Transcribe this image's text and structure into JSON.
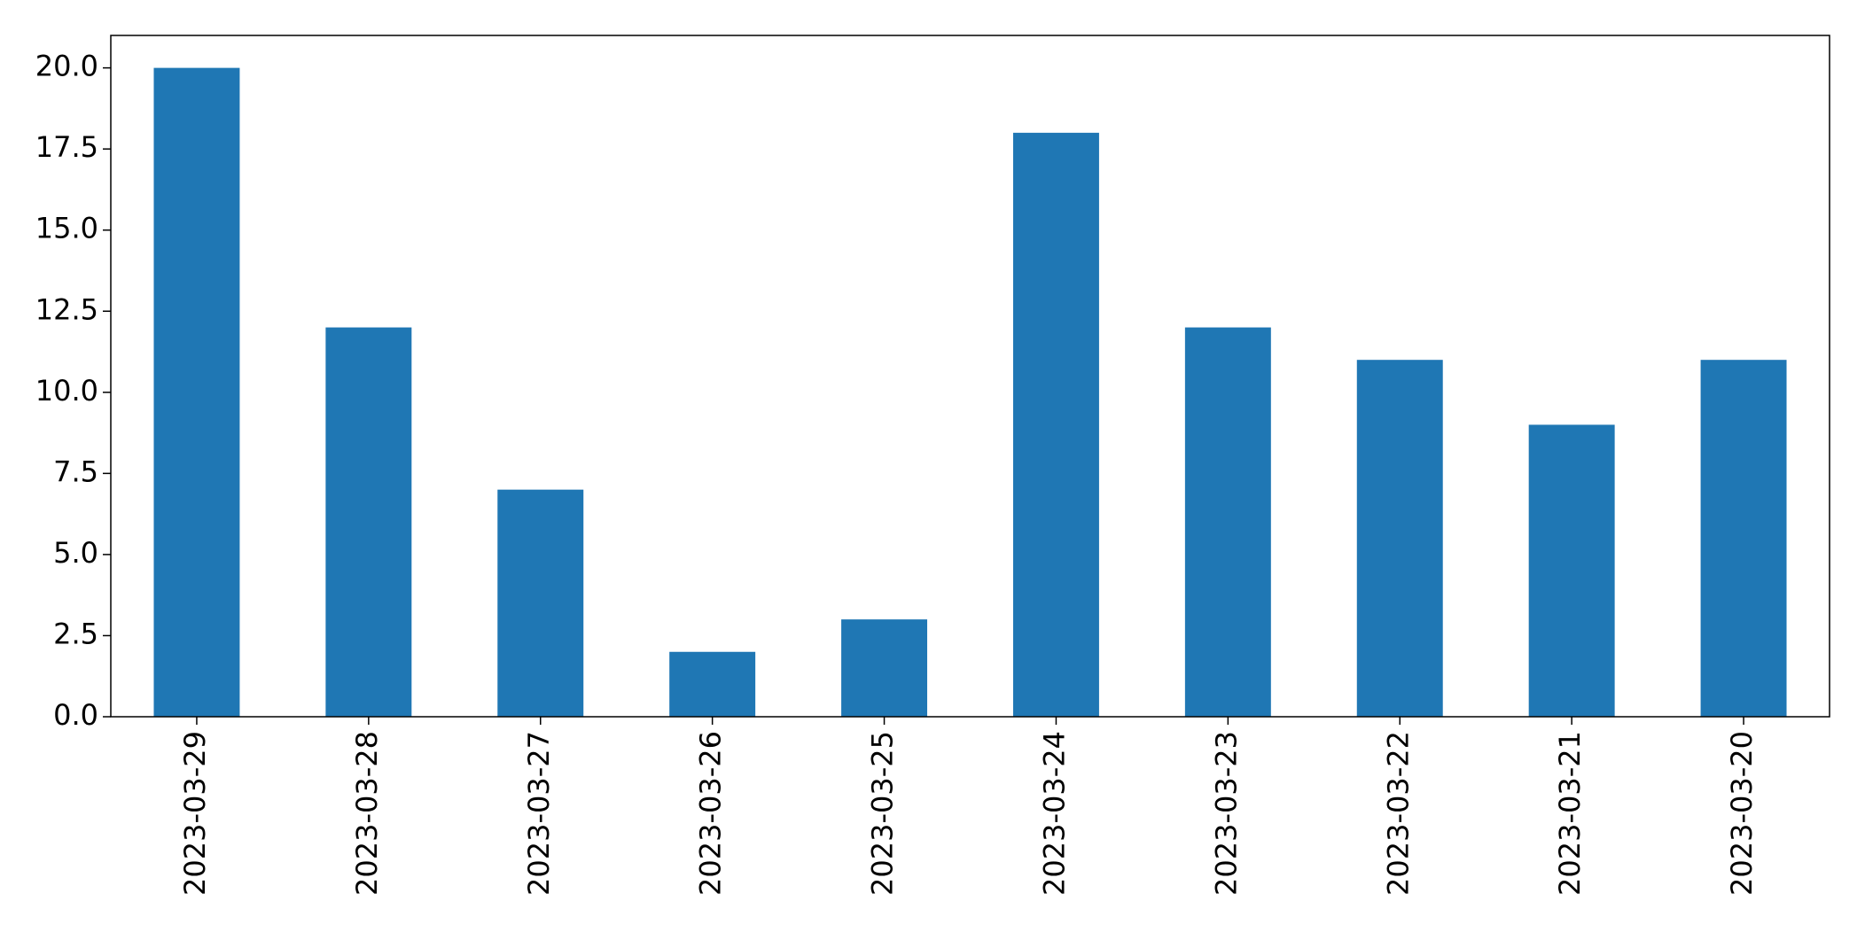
{
  "chart_data": {
    "type": "bar",
    "categories": [
      "2023-03-29",
      "2023-03-28",
      "2023-03-27",
      "2023-03-26",
      "2023-03-25",
      "2023-03-24",
      "2023-03-23",
      "2023-03-22",
      "2023-03-21",
      "2023-03-20"
    ],
    "values": [
      20,
      12,
      7,
      2,
      3,
      18,
      12,
      11,
      9,
      11
    ],
    "color": "#1f77b4",
    "ylim": [
      0,
      21
    ],
    "yticks": [
      {
        "value": 0,
        "label": "0.0"
      },
      {
        "value": 2.5,
        "label": "2.5"
      },
      {
        "value": 5,
        "label": "5.0"
      },
      {
        "value": 7.5,
        "label": "7.5"
      },
      {
        "value": 10,
        "label": "10.0"
      },
      {
        "value": 12.5,
        "label": "12.5"
      },
      {
        "value": 15,
        "label": "15.0"
      },
      {
        "value": 17.5,
        "label": "17.5"
      },
      {
        "value": 20,
        "label": "20.0"
      }
    ],
    "grid": false
  }
}
